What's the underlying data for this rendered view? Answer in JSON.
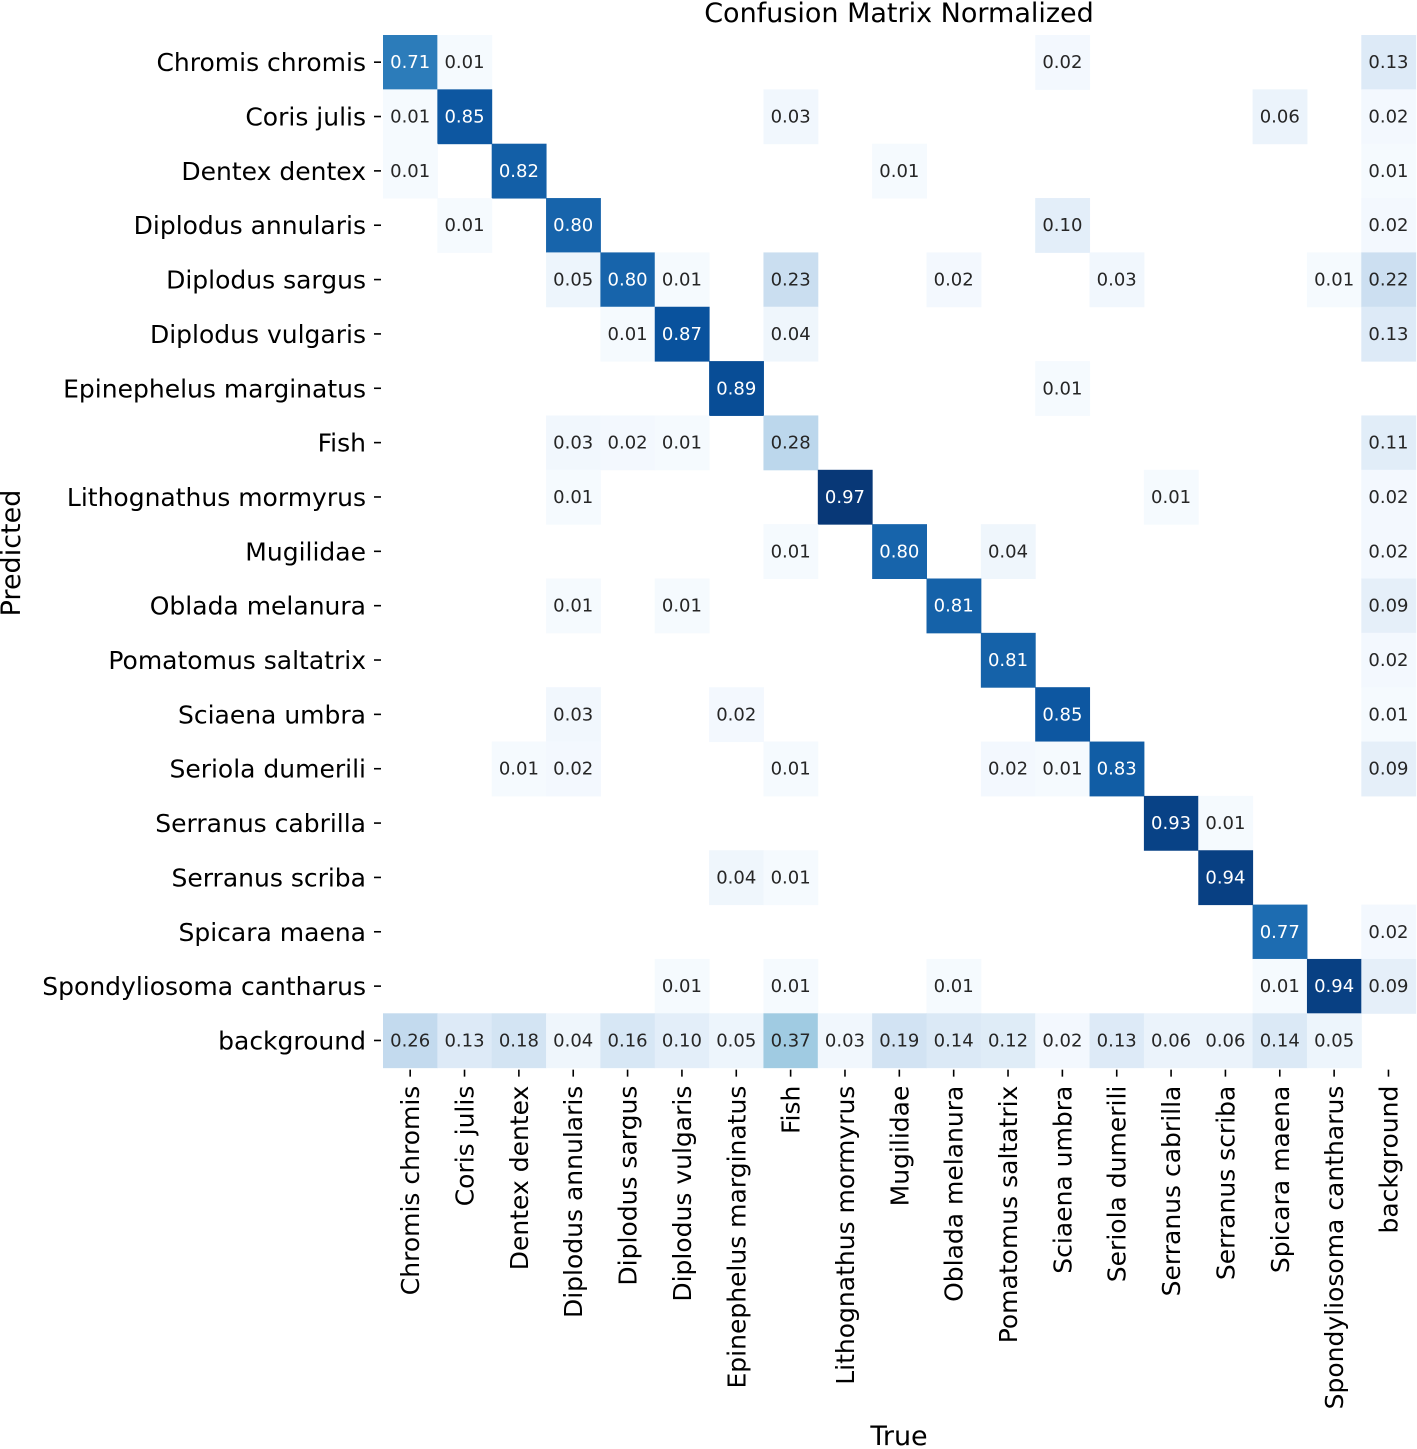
{
  "chart_data": {
    "type": "heatmap",
    "title": "Confusion Matrix Normalized",
    "xlabel": "True",
    "ylabel": "Predicted",
    "colormap": "Blues",
    "value_range": [
      0,
      1
    ],
    "row_labels": [
      "Chromis chromis",
      "Coris julis",
      "Dentex dentex",
      "Diplodus annularis",
      "Diplodus sargus",
      "Diplodus vulgaris",
      "Epinephelus marginatus",
      "Fish",
      "Lithognathus mormyrus",
      "Mugilidae",
      "Oblada melanura",
      "Pomatomus saltatrix",
      "Sciaena umbra",
      "Seriola dumerili",
      "Serranus cabrilla",
      "Serranus scriba",
      "Spicara maena",
      "Spondyliosoma cantharus",
      "background"
    ],
    "col_labels": [
      "Chromis chromis",
      "Coris julis",
      "Dentex dentex",
      "Diplodus annularis",
      "Diplodus sargus",
      "Diplodus vulgaris",
      "Epinephelus marginatus",
      "Fish",
      "Lithognathus mormyrus",
      "Mugilidae",
      "Oblada melanura",
      "Pomatomus saltatrix",
      "Sciaena umbra",
      "Seriola dumerili",
      "Serranus cabrilla",
      "Serranus scriba",
      "Spicara maena",
      "Spondyliosoma cantharus",
      "background"
    ],
    "matrix": [
      [
        0.71,
        0.01,
        null,
        null,
        null,
        null,
        null,
        null,
        null,
        null,
        null,
        null,
        0.02,
        null,
        null,
        null,
        null,
        null,
        0.13
      ],
      [
        0.01,
        0.85,
        null,
        null,
        null,
        null,
        null,
        0.03,
        null,
        null,
        null,
        null,
        null,
        null,
        null,
        null,
        0.06,
        null,
        0.02
      ],
      [
        0.01,
        null,
        0.82,
        null,
        null,
        null,
        null,
        null,
        null,
        0.01,
        null,
        null,
        null,
        null,
        null,
        null,
        null,
        null,
        0.01
      ],
      [
        null,
        0.01,
        null,
        0.8,
        null,
        null,
        null,
        null,
        null,
        null,
        null,
        null,
        0.1,
        null,
        null,
        null,
        null,
        null,
        0.02
      ],
      [
        null,
        null,
        null,
        0.05,
        0.8,
        0.01,
        null,
        0.23,
        null,
        null,
        0.02,
        null,
        null,
        0.03,
        null,
        null,
        null,
        0.01,
        0.22
      ],
      [
        null,
        null,
        null,
        null,
        0.01,
        0.87,
        null,
        0.04,
        null,
        null,
        null,
        null,
        null,
        null,
        null,
        null,
        null,
        null,
        0.13
      ],
      [
        null,
        null,
        null,
        null,
        null,
        null,
        0.89,
        null,
        null,
        null,
        null,
        null,
        0.01,
        null,
        null,
        null,
        null,
        null,
        null
      ],
      [
        null,
        null,
        null,
        0.03,
        0.02,
        0.01,
        null,
        0.28,
        null,
        null,
        null,
        null,
        null,
        null,
        null,
        null,
        null,
        null,
        0.11
      ],
      [
        null,
        null,
        null,
        0.01,
        null,
        null,
        null,
        null,
        0.97,
        null,
        null,
        null,
        null,
        null,
        0.01,
        null,
        null,
        null,
        0.02
      ],
      [
        null,
        null,
        null,
        null,
        null,
        null,
        null,
        0.01,
        null,
        0.8,
        null,
        0.04,
        null,
        null,
        null,
        null,
        null,
        null,
        0.02
      ],
      [
        null,
        null,
        null,
        0.01,
        null,
        0.01,
        null,
        null,
        null,
        null,
        0.81,
        null,
        null,
        null,
        null,
        null,
        null,
        null,
        0.09
      ],
      [
        null,
        null,
        null,
        null,
        null,
        null,
        null,
        null,
        null,
        null,
        null,
        0.81,
        null,
        null,
        null,
        null,
        null,
        null,
        0.02
      ],
      [
        null,
        null,
        null,
        0.03,
        null,
        null,
        0.02,
        null,
        null,
        null,
        null,
        null,
        0.85,
        null,
        null,
        null,
        null,
        null,
        0.01
      ],
      [
        null,
        null,
        0.01,
        0.02,
        null,
        null,
        null,
        0.01,
        null,
        null,
        null,
        0.02,
        0.01,
        0.83,
        null,
        null,
        null,
        null,
        0.09
      ],
      [
        null,
        null,
        null,
        null,
        null,
        null,
        null,
        null,
        null,
        null,
        null,
        null,
        null,
        null,
        0.93,
        0.01,
        null,
        null,
        null
      ],
      [
        null,
        null,
        null,
        null,
        null,
        null,
        0.04,
        0.01,
        null,
        null,
        null,
        null,
        null,
        null,
        null,
        0.94,
        null,
        null,
        null
      ],
      [
        null,
        null,
        null,
        null,
        null,
        null,
        null,
        null,
        null,
        null,
        null,
        null,
        null,
        null,
        null,
        null,
        0.77,
        null,
        0.02
      ],
      [
        null,
        null,
        null,
        null,
        null,
        0.01,
        null,
        0.01,
        null,
        null,
        0.01,
        null,
        null,
        null,
        null,
        null,
        0.01,
        0.94,
        0.09
      ],
      [
        0.26,
        0.13,
        0.18,
        0.04,
        0.16,
        0.1,
        0.05,
        0.37,
        0.03,
        0.19,
        0.14,
        0.12,
        0.02,
        0.13,
        0.06,
        0.06,
        0.14,
        0.05,
        null
      ]
    ]
  }
}
